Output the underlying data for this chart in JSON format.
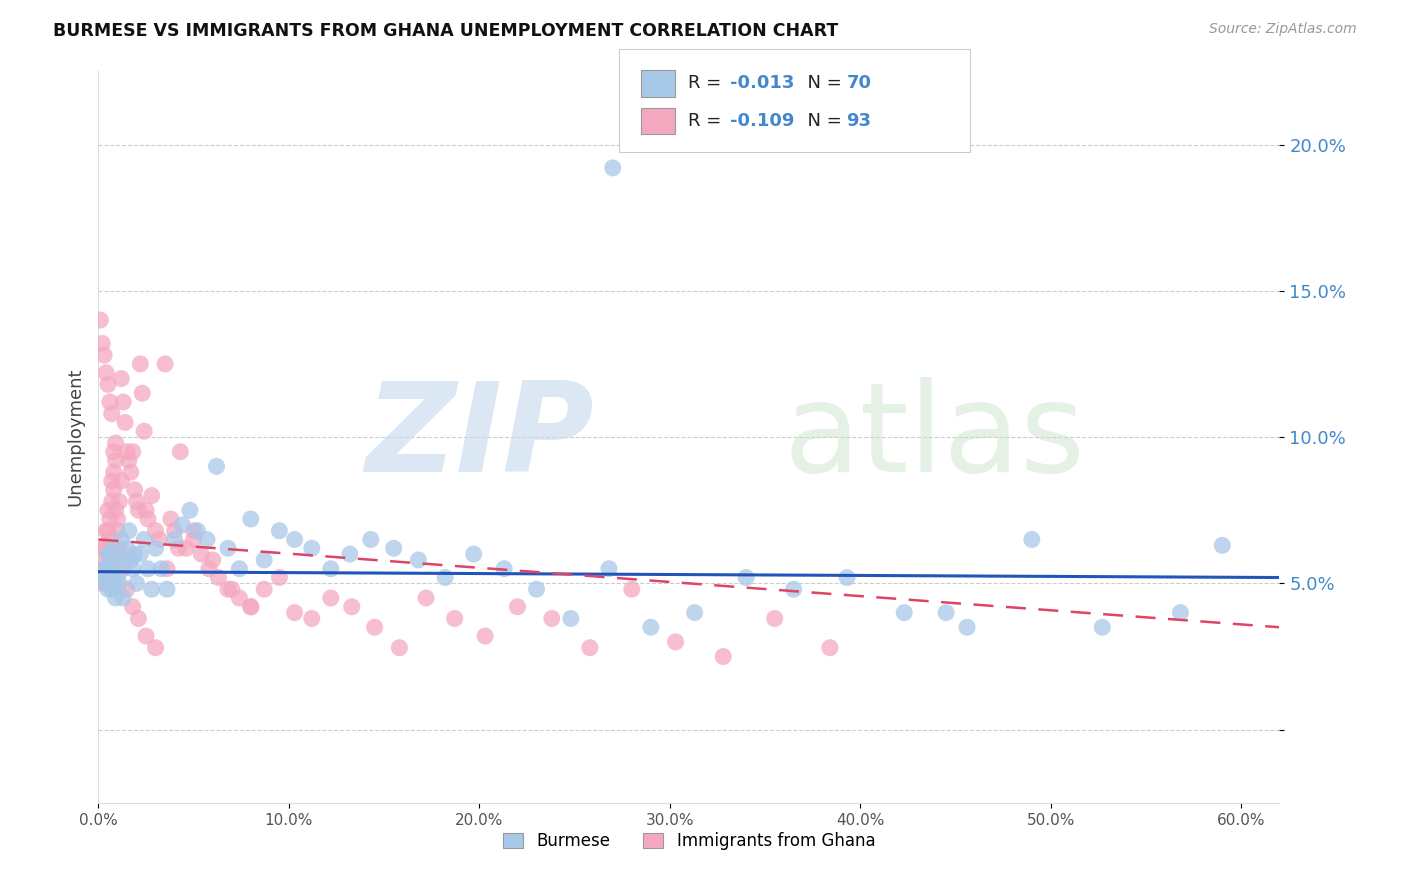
{
  "title": "BURMESE VS IMMIGRANTS FROM GHANA UNEMPLOYMENT CORRELATION CHART",
  "source": "Source: ZipAtlas.com",
  "ylabel": "Unemployment",
  "blue_R": "-0.013",
  "blue_N": "70",
  "pink_R": "-0.109",
  "pink_N": "93",
  "blue_color": "#a8c8e8",
  "pink_color": "#f4a8c0",
  "trendline_blue_color": "#2255bb",
  "trendline_pink_color": "#dd4466",
  "axis_blue_color": "#4488cc",
  "legend_label_blue": "Burmese",
  "legend_label_pink": "Immigrants from Ghana",
  "ytick_vals": [
    0.0,
    0.05,
    0.1,
    0.15,
    0.2
  ],
  "ytick_labels": [
    "",
    "5.0%",
    "10.0%",
    "15.0%",
    "20.0%"
  ],
  "xtick_vals": [
    0.0,
    0.1,
    0.2,
    0.3,
    0.4,
    0.5,
    0.6
  ],
  "xtick_labels": [
    "0.0%",
    "10.0%",
    "20.0%",
    "30.0%",
    "40.0%",
    "50.0%",
    "60.0%"
  ],
  "xlim": [
    0.0,
    0.62
  ],
  "ylim": [
    -0.025,
    0.225
  ],
  "blue_x": [
    0.002,
    0.003,
    0.004,
    0.005,
    0.006,
    0.007,
    0.008,
    0.009,
    0.01,
    0.011,
    0.012,
    0.013,
    0.014,
    0.015,
    0.016,
    0.017,
    0.018,
    0.019,
    0.02,
    0.022,
    0.024,
    0.026,
    0.028,
    0.03,
    0.033,
    0.036,
    0.04,
    0.044,
    0.048,
    0.052,
    0.057,
    0.062,
    0.068,
    0.074,
    0.08,
    0.087,
    0.095,
    0.103,
    0.112,
    0.122,
    0.132,
    0.143,
    0.155,
    0.168,
    0.182,
    0.197,
    0.213,
    0.23,
    0.248,
    0.268,
    0.29,
    0.313,
    0.27,
    0.34,
    0.365,
    0.393,
    0.423,
    0.456,
    0.49,
    0.527,
    0.568,
    0.003,
    0.004,
    0.005,
    0.006,
    0.007,
    0.008,
    0.009,
    0.59,
    0.445
  ],
  "blue_y": [
    0.052,
    0.055,
    0.05,
    0.06,
    0.055,
    0.048,
    0.062,
    0.058,
    0.053,
    0.05,
    0.065,
    0.045,
    0.058,
    0.062,
    0.068,
    0.058,
    0.055,
    0.06,
    0.05,
    0.06,
    0.065,
    0.055,
    0.048,
    0.062,
    0.055,
    0.048,
    0.065,
    0.07,
    0.075,
    0.068,
    0.065,
    0.09,
    0.062,
    0.055,
    0.072,
    0.058,
    0.068,
    0.065,
    0.062,
    0.055,
    0.06,
    0.065,
    0.062,
    0.058,
    0.052,
    0.06,
    0.055,
    0.048,
    0.038,
    0.055,
    0.035,
    0.04,
    0.192,
    0.052,
    0.048,
    0.052,
    0.04,
    0.035,
    0.065,
    0.035,
    0.04,
    0.052,
    0.055,
    0.048,
    0.06,
    0.055,
    0.05,
    0.045,
    0.063,
    0.04
  ],
  "pink_x": [
    0.001,
    0.002,
    0.002,
    0.003,
    0.003,
    0.004,
    0.004,
    0.005,
    0.005,
    0.006,
    0.006,
    0.007,
    0.007,
    0.008,
    0.008,
    0.009,
    0.009,
    0.01,
    0.01,
    0.011,
    0.012,
    0.012,
    0.013,
    0.014,
    0.015,
    0.016,
    0.017,
    0.018,
    0.019,
    0.02,
    0.021,
    0.022,
    0.023,
    0.024,
    0.025,
    0.026,
    0.028,
    0.03,
    0.032,
    0.035,
    0.038,
    0.04,
    0.043,
    0.046,
    0.05,
    0.054,
    0.058,
    0.063,
    0.068,
    0.074,
    0.08,
    0.087,
    0.095,
    0.103,
    0.112,
    0.122,
    0.133,
    0.145,
    0.158,
    0.172,
    0.187,
    0.203,
    0.22,
    0.238,
    0.258,
    0.28,
    0.303,
    0.328,
    0.355,
    0.384,
    0.001,
    0.002,
    0.003,
    0.004,
    0.005,
    0.006,
    0.007,
    0.008,
    0.009,
    0.01,
    0.011,
    0.013,
    0.015,
    0.018,
    0.021,
    0.025,
    0.03,
    0.036,
    0.042,
    0.05,
    0.06,
    0.07,
    0.08
  ],
  "pink_y": [
    0.052,
    0.05,
    0.062,
    0.055,
    0.062,
    0.058,
    0.068,
    0.068,
    0.075,
    0.065,
    0.072,
    0.078,
    0.085,
    0.088,
    0.095,
    0.092,
    0.098,
    0.06,
    0.072,
    0.078,
    0.085,
    0.12,
    0.112,
    0.105,
    0.095,
    0.092,
    0.088,
    0.095,
    0.082,
    0.078,
    0.075,
    0.125,
    0.115,
    0.102,
    0.075,
    0.072,
    0.08,
    0.068,
    0.065,
    0.125,
    0.072,
    0.068,
    0.095,
    0.062,
    0.065,
    0.06,
    0.055,
    0.052,
    0.048,
    0.045,
    0.042,
    0.048,
    0.052,
    0.04,
    0.038,
    0.045,
    0.042,
    0.035,
    0.028,
    0.045,
    0.038,
    0.032,
    0.042,
    0.038,
    0.028,
    0.048,
    0.03,
    0.025,
    0.038,
    0.028,
    0.14,
    0.132,
    0.128,
    0.122,
    0.118,
    0.112,
    0.108,
    0.082,
    0.075,
    0.068,
    0.062,
    0.055,
    0.048,
    0.042,
    0.038,
    0.032,
    0.028,
    0.055,
    0.062,
    0.068,
    0.058,
    0.048,
    0.042
  ]
}
